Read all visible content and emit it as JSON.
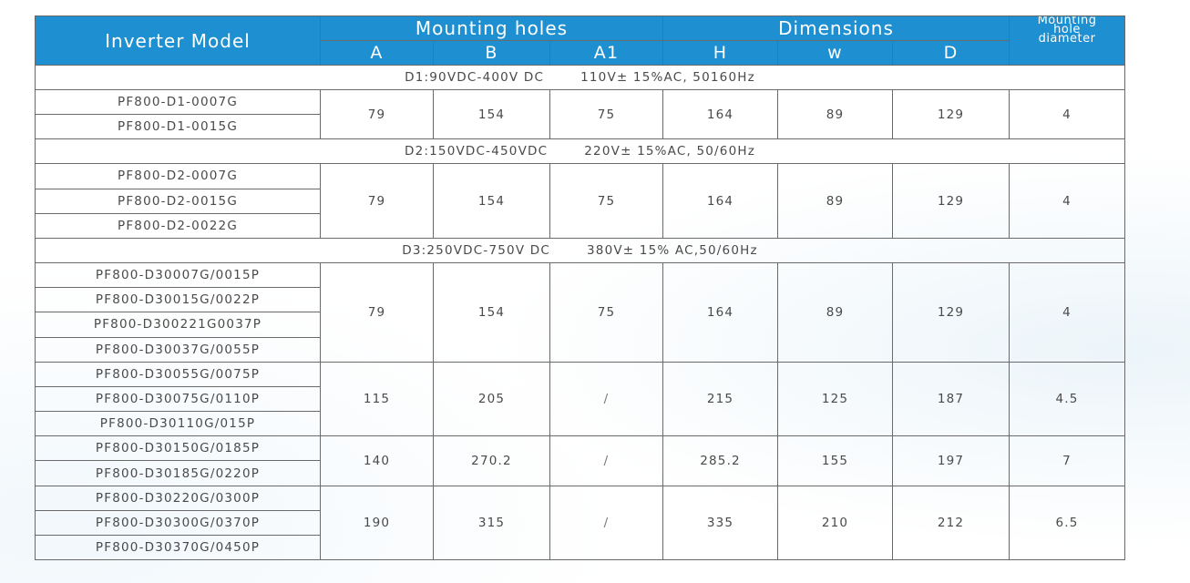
{
  "header": {
    "inverter_model": "Inverter Model",
    "mounting_holes": "Mounting holes",
    "dimensions": "Dimensions",
    "diameter_line1": "Mounting",
    "diameter_line2": "hole",
    "diameter_line3": "diameter",
    "col_a": "A",
    "col_b": "B",
    "col_a1": "A1",
    "col_h": "H",
    "col_w": "w",
    "col_d": "D"
  },
  "groups": [
    {
      "label_dc": "D1:90VDC-400V DC",
      "label_ac": "110V± 15%AC, 50160Hz",
      "blocks": [
        {
          "models": [
            "PF800-D1-0007G",
            "PF800-D1-0015G"
          ],
          "A": "79",
          "B": "154",
          "A1": "75",
          "H": "164",
          "W": "89",
          "D": "129",
          "dia": "4"
        }
      ]
    },
    {
      "label_dc": "D2:150VDC-450VDC",
      "label_ac": "220V± 15%AC, 50/60Hz",
      "blocks": [
        {
          "models": [
            "PF800-D2-0007G",
            "PF800-D2-0015G",
            "PF800-D2-0022G"
          ],
          "A": "79",
          "B": "154",
          "A1": "75",
          "H": "164",
          "W": "89",
          "D": "129",
          "dia": "4"
        }
      ]
    },
    {
      "label_dc": "D3:250VDC-750V DC",
      "label_ac": "380V± 15% AC,50/60Hz",
      "blocks": [
        {
          "models": [
            "PF800-D30007G/0015P",
            "PF800-D30015G/0022P",
            "PF800-D300221G0037P",
            "PF800-D30037G/0055P"
          ],
          "A": "79",
          "B": "154",
          "A1": "75",
          "H": "164",
          "W": "89",
          "D": "129",
          "dia": "4"
        },
        {
          "models": [
            "PF800-D30055G/0075P",
            "PF800-D30075G/0110P",
            "PF800-D30110G/015P"
          ],
          "A": "115",
          "B": "205",
          "A1": "/",
          "H": "215",
          "W": "125",
          "D": "187",
          "dia": "4.5"
        },
        {
          "models": [
            "PF800-D30150G/0185P",
            "PF800-D30185G/0220P"
          ],
          "A": "140",
          "B": "270.2",
          "A1": "/",
          "H": "285.2",
          "W": "155",
          "D": "197",
          "dia": "7"
        },
        {
          "models": [
            "PF800-D30220G/0300P",
            "PF800-D30300G/0370P",
            "PF800-D30370G/0450P"
          ],
          "A": "190",
          "B": "315",
          "A1": "/",
          "H": "335",
          "W": "210",
          "D": "212",
          "dia": "6.5"
        }
      ]
    }
  ]
}
